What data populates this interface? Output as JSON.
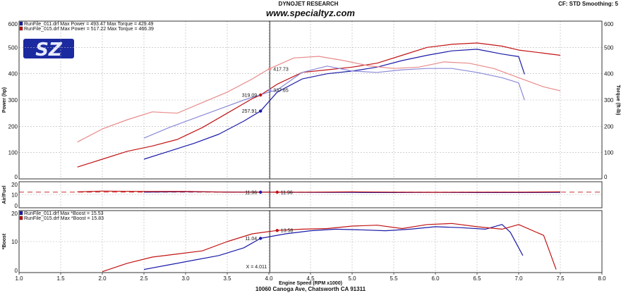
{
  "header": {
    "title": "DYNOJET RESEARCH",
    "url": "www.specialtyz.com",
    "cf": "CF: STD  Smoothing: 5",
    "footer_address": "10060 Canoga Ave, Chatsworth CA 91311",
    "logo_text": "SZ"
  },
  "colors": {
    "blue": "#1a1aa8",
    "red": "#c21414",
    "light_blue": "#8a8ad8",
    "light_red": "#e88a8a"
  },
  "chart_data": [
    {
      "type": "line",
      "ylabel_left": "Power (hp)",
      "ylabel_right": "Torque (ft-lb)",
      "xlim": [
        1.0,
        8.0
      ],
      "ylim": [
        0,
        600
      ],
      "grid": true,
      "legend": [
        "RunFile_011.drf Max Power = 493.47    Max Torque = 429.49",
        "RunFile_015.drf Max Power = 517.22    Max Torque = 466.39"
      ],
      "series": [
        {
          "name": "RunFile_011.drf",
          "color": "#1a1aa8",
          "x": [
            2.5,
            2.8,
            3.1,
            3.4,
            3.7,
            3.9,
            4.1,
            4.4,
            4.7,
            5.0,
            5.3,
            5.6,
            5.9,
            6.2,
            6.5,
            6.8,
            7.0,
            7.07
          ],
          "values": [
            75,
            105,
            135,
            170,
            220,
            258,
            330,
            380,
            400,
            410,
            425,
            450,
            470,
            487,
            493,
            475,
            465,
            398
          ]
        },
        {
          "name": "RunFile_015.drf",
          "color": "#c21414",
          "x": [
            1.7,
            2.0,
            2.3,
            2.6,
            2.9,
            3.2,
            3.5,
            3.8,
            3.9,
            4.1,
            4.4,
            4.7,
            5.0,
            5.3,
            5.6,
            5.9,
            6.2,
            6.5,
            6.8,
            7.0,
            7.3,
            7.5
          ],
          "values": [
            45,
            75,
            105,
            125,
            150,
            195,
            250,
            305,
            319,
            360,
            405,
            415,
            425,
            440,
            470,
            500,
            512,
            517,
            505,
            490,
            478,
            470
          ]
        },
        {
          "name": "RunFile_011.drf Torque",
          "color": "#8a8ad8",
          "x": [
            2.5,
            2.8,
            3.1,
            3.4,
            3.7,
            4.0,
            4.1,
            4.4,
            4.7,
            5.0,
            5.3,
            5.6,
            5.9,
            6.2,
            6.5,
            6.8,
            7.0,
            7.07
          ],
          "values": [
            155,
            195,
            230,
            265,
            300,
            330,
            338,
            405,
            429,
            410,
            405,
            415,
            420,
            420,
            405,
            385,
            365,
            300
          ]
        },
        {
          "name": "RunFile_015.drf Torque",
          "color": "#e88a8a",
          "x": [
            1.7,
            2.0,
            2.3,
            2.6,
            2.9,
            3.2,
            3.5,
            3.8,
            4.0,
            4.3,
            4.6,
            4.9,
            5.2,
            5.5,
            5.8,
            6.1,
            6.4,
            6.7,
            7.0,
            7.3,
            7.5
          ],
          "values": [
            140,
            190,
            225,
            255,
            250,
            290,
            330,
            380,
            418,
            460,
            466,
            450,
            430,
            420,
            425,
            445,
            440,
            420,
            385,
            350,
            335
          ]
        }
      ],
      "annotations": [
        "417.73",
        "319.09",
        "337.65",
        "257.91"
      ]
    },
    {
      "type": "line",
      "ylabel_left": "Air/Fuel",
      "xlim": [
        1.0,
        8.0
      ],
      "ylim": [
        0,
        20
      ],
      "grid": true,
      "series": [
        {
          "name": "RunFile_011.drf AFR",
          "color": "#1a1aa8",
          "x": [
            2.5,
            3.0,
            3.5,
            4.0,
            4.5,
            5.0,
            5.5,
            6.0,
            6.5,
            7.0,
            7.5
          ],
          "values": [
            12.0,
            12.3,
            12.1,
            11.96,
            11.8,
            11.8,
            11.7,
            11.8,
            11.7,
            11.7,
            11.8
          ]
        },
        {
          "name": "RunFile_015.drf AFR",
          "color": "#c21414",
          "x": [
            1.7,
            2.0,
            2.5,
            3.0,
            3.5,
            4.0,
            4.5,
            5.0,
            5.5,
            6.0,
            6.5,
            7.0,
            7.5
          ],
          "values": [
            12.2,
            12.8,
            12.5,
            12.6,
            12.0,
            11.96,
            12.0,
            12.2,
            12.0,
            11.9,
            12.0,
            12.0,
            12.2
          ]
        }
      ],
      "reference_value": 12.0,
      "annotations": [
        "11.96",
        "11.96"
      ]
    },
    {
      "type": "line",
      "ylabel_left": "*Boost",
      "xlim": [
        1.0,
        8.0
      ],
      "ylim": [
        0,
        20
      ],
      "xlabel": "Engine Speed (RPM x1000)",
      "xticks": [
        "1.0",
        "1.5",
        "2.0",
        "2.5",
        "3.0",
        "3.5",
        "4.0",
        "4.5",
        "5.0",
        "5.5",
        "6.0",
        "6.5",
        "7.0",
        "7.5",
        "8.0"
      ],
      "grid": true,
      "legend": [
        "RunFile_011.drf Max *Boost = 15.53",
        "RunFile_015.drf Max *Boost = 15.83"
      ],
      "series": [
        {
          "name": "RunFile_011.drf Boost",
          "color": "#1a1aa8",
          "x": [
            2.5,
            2.8,
            3.1,
            3.4,
            3.7,
            3.9,
            4.2,
            4.5,
            4.8,
            5.1,
            5.4,
            5.7,
            6.0,
            6.3,
            6.6,
            6.8,
            6.9,
            7.0,
            7.05
          ],
          "values": [
            1,
            2.5,
            4,
            5.5,
            8,
            11.04,
            12.5,
            13.5,
            14.0,
            13.8,
            13.5,
            14.0,
            14.8,
            14.5,
            14.0,
            15.53,
            13,
            8,
            5.5
          ]
        },
        {
          "name": "RunFile_015.drf Boost",
          "color": "#c21414",
          "x": [
            2.0,
            2.3,
            2.6,
            2.9,
            3.2,
            3.5,
            3.8,
            4.1,
            4.4,
            4.7,
            5.0,
            5.3,
            5.6,
            5.9,
            6.2,
            6.5,
            6.8,
            7.0,
            7.3,
            7.45
          ],
          "values": [
            0.3,
            3,
            5,
            6,
            7,
            10,
            12.5,
            13.58,
            14.0,
            14.2,
            15.0,
            15.3,
            14.2,
            15.5,
            15.83,
            14.8,
            14.0,
            15.5,
            12,
            1
          ]
        }
      ],
      "annotations": [
        "13.58",
        "11.04",
        "X = 4.011"
      ]
    }
  ],
  "cursor_x": 4.011,
  "axis_ticks": {
    "power": [
      "0",
      "100",
      "200",
      "300",
      "400",
      "500",
      "600"
    ],
    "small": [
      "0",
      "10",
      "20"
    ]
  },
  "markers": [
    {
      "panel": 0,
      "x": 4.011,
      "y": 417.73,
      "color": "#e88a8a",
      "label": "417.73",
      "side": "right"
    },
    {
      "panel": 0,
      "x": 3.9,
      "y": 319.09,
      "color": "#c21414",
      "label": "319.09",
      "side": "left"
    },
    {
      "panel": 0,
      "x": 4.011,
      "y": 337.65,
      "color": "#8a8ad8",
      "label": "337.65",
      "side": "right"
    },
    {
      "panel": 0,
      "x": 3.9,
      "y": 257.91,
      "color": "#1a1aa8",
      "label": "257.91",
      "side": "left"
    },
    {
      "panel": 1,
      "x": 3.9,
      "y": 11.96,
      "color": "#1a1aa8",
      "label": "11.96",
      "side": "left"
    },
    {
      "panel": 1,
      "x": 4.1,
      "y": 11.96,
      "color": "#c21414",
      "label": "11.96",
      "side": "right"
    },
    {
      "panel": 2,
      "x": 4.1,
      "y": 13.58,
      "color": "#c21414",
      "label": "13.58",
      "side": "right"
    },
    {
      "panel": 2,
      "x": 3.9,
      "y": 11.04,
      "color": "#1a1aa8",
      "label": "11.04",
      "side": "left"
    }
  ]
}
